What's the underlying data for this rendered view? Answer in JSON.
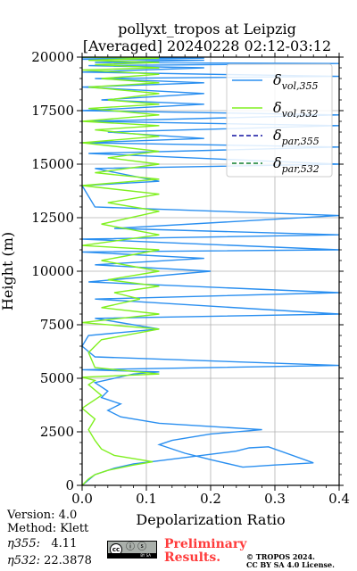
{
  "figure": {
    "title_line1": "pollyxt_tropos at Leipzig",
    "title_line2": "[Averaged] 20240228 02:12-03:12"
  },
  "chart_data": {
    "type": "line",
    "xlabel": "Depolarization Ratio",
    "ylabel": "Height (m)",
    "xlim": [
      0.0,
      0.4
    ],
    "ylim": [
      0,
      20000
    ],
    "xticks": [
      "0.0",
      "0.1",
      "0.2",
      "0.3",
      "0.4"
    ],
    "yticks": [
      "0",
      "2500",
      "5000",
      "7500",
      "10000",
      "12500",
      "15000",
      "17500",
      "20000"
    ],
    "xtick_values": [
      0.0,
      0.1,
      0.2,
      0.3,
      0.4
    ],
    "ytick_values": [
      0,
      2500,
      5000,
      7500,
      10000,
      12500,
      15000,
      17500,
      20000
    ],
    "grid": true,
    "legend_position": "top-right",
    "colors": {
      "vol355": "#2a8ff0",
      "vol532": "#80f020",
      "par355": "#1010a0",
      "par532": "#108030"
    },
    "series": [
      {
        "name": "δvol,355",
        "legend_main": "δ",
        "legend_sub": "vol,355",
        "color": "#2a8ff0",
        "dash": "solid",
        "x": [
          0.0,
          0.01,
          0.02,
          0.05,
          0.08,
          0.12,
          0.16,
          0.2,
          0.24,
          0.26,
          0.29,
          0.36,
          0.3,
          0.25,
          0.2,
          0.16,
          0.12,
          0.14,
          0.2,
          0.28,
          0.12,
          0.06,
          0.04,
          0.06,
          0.03,
          0.04,
          0.02,
          0.05,
          0.08,
          0.12,
          0.0,
          0.4,
          0.02,
          0.0,
          0.01,
          0.12,
          0.02,
          0.4,
          0.02,
          0.4,
          0.01,
          0.2,
          0.02,
          0.19,
          0.0,
          0.4,
          0.0,
          0.4,
          0.05,
          0.4,
          0.02,
          0.01,
          0.0,
          0.12,
          0.02,
          0.4,
          0.01,
          0.4,
          0.0,
          0.19,
          0.04,
          0.4,
          0.01,
          0.4,
          0.0,
          0.19,
          0.03,
          0.19,
          0.0,
          0.19,
          0.02,
          0.4,
          0.0,
          0.19,
          0.01,
          0.4,
          0.02,
          0.19,
          0.0,
          0.19,
          0.0,
          0.19,
          0.01
        ],
        "y": [
          0,
          250,
          500,
          800,
          1000,
          1150,
          1300,
          1450,
          1600,
          1750,
          1800,
          1050,
          950,
          850,
          1200,
          1500,
          1900,
          2100,
          2400,
          2600,
          2900,
          3200,
          3500,
          3800,
          4100,
          4400,
          4800,
          5000,
          5200,
          5300,
          5400,
          5600,
          6000,
          6500,
          7000,
          7300,
          7800,
          8000,
          8700,
          9000,
          9500,
          10000,
          10300,
          10600,
          10900,
          11000,
          11500,
          11700,
          12000,
          12600,
          13000,
          13500,
          14000,
          14200,
          14800,
          15000,
          15500,
          15800,
          16000,
          16200,
          16500,
          16800,
          17000,
          17300,
          17500,
          17800,
          18000,
          18300,
          18600,
          18800,
          19000,
          19100,
          19300,
          19500,
          19600,
          19700,
          19750,
          19850,
          19900,
          19950,
          19970,
          19990,
          20000
        ]
      },
      {
        "name": "δvol,532",
        "legend_main": "δ",
        "legend_sub": "vol,532",
        "color": "#80f020",
        "dash": "solid",
        "x": [
          0.0,
          0.005,
          0.01,
          0.02,
          0.04,
          0.08,
          0.1,
          0.11,
          0.09,
          0.05,
          0.03,
          0.02,
          0.01,
          0.02,
          0.0,
          0.03,
          0.01,
          0.02,
          0.0,
          0.12,
          0.02,
          0.01,
          0.03,
          0.12,
          0.0,
          0.12,
          0.03,
          0.09,
          0.05,
          0.12,
          0.04,
          0.12,
          0.03,
          0.12,
          0.0,
          0.12,
          0.03,
          0.12,
          0.04,
          0.12,
          0.0,
          0.12,
          0.02,
          0.12,
          0.04,
          0.12,
          0.0,
          0.12,
          0.02,
          0.12,
          0.0,
          0.12,
          0.01,
          0.12,
          0.04,
          0.12,
          0.01,
          0.12,
          0.03,
          0.12,
          0.0,
          0.12,
          0.02,
          0.12,
          0.01,
          0.12,
          0.0
        ],
        "y": [
          0,
          150,
          300,
          500,
          700,
          950,
          1050,
          1100,
          1200,
          1400,
          1700,
          2100,
          2600,
          3100,
          3600,
          4200,
          4700,
          4900,
          5050,
          5200,
          5500,
          6200,
          6800,
          7300,
          7600,
          8000,
          8300,
          8700,
          9000,
          9300,
          9600,
          10000,
          10500,
          11000,
          11200,
          11700,
          12200,
          12800,
          13200,
          13600,
          14000,
          14300,
          14600,
          15000,
          15300,
          15600,
          16000,
          16300,
          16600,
          16800,
          17000,
          17300,
          17600,
          17800,
          18000,
          18300,
          18600,
          18800,
          19000,
          19200,
          19400,
          19500,
          19650,
          19750,
          19850,
          19950,
          20000
        ]
      },
      {
        "name": "δpar,355",
        "legend_main": "δ",
        "legend_sub": "par,355",
        "color": "#1010a0",
        "dash": "dashed",
        "x": [],
        "y": []
      },
      {
        "name": "δpar,532",
        "legend_main": "δ",
        "legend_sub": "par,532",
        "color": "#108030",
        "dash": "dashed",
        "x": [],
        "y": []
      }
    ]
  },
  "footer": {
    "version": "Version: 4.0",
    "method": "Method: Klett",
    "eta355_label": "η355:",
    "eta355_value": "4.11",
    "eta532_label": "η532:",
    "eta532_value": "22.3878",
    "preliminary_line1": "Preliminary",
    "preliminary_line2": "Results.",
    "copyright_line1": "© TROPOS 2024.",
    "copyright_line2": "CC BY SA 4.0 License.",
    "license_badge_text": "cc",
    "license_badge_strip": "BY SA"
  }
}
